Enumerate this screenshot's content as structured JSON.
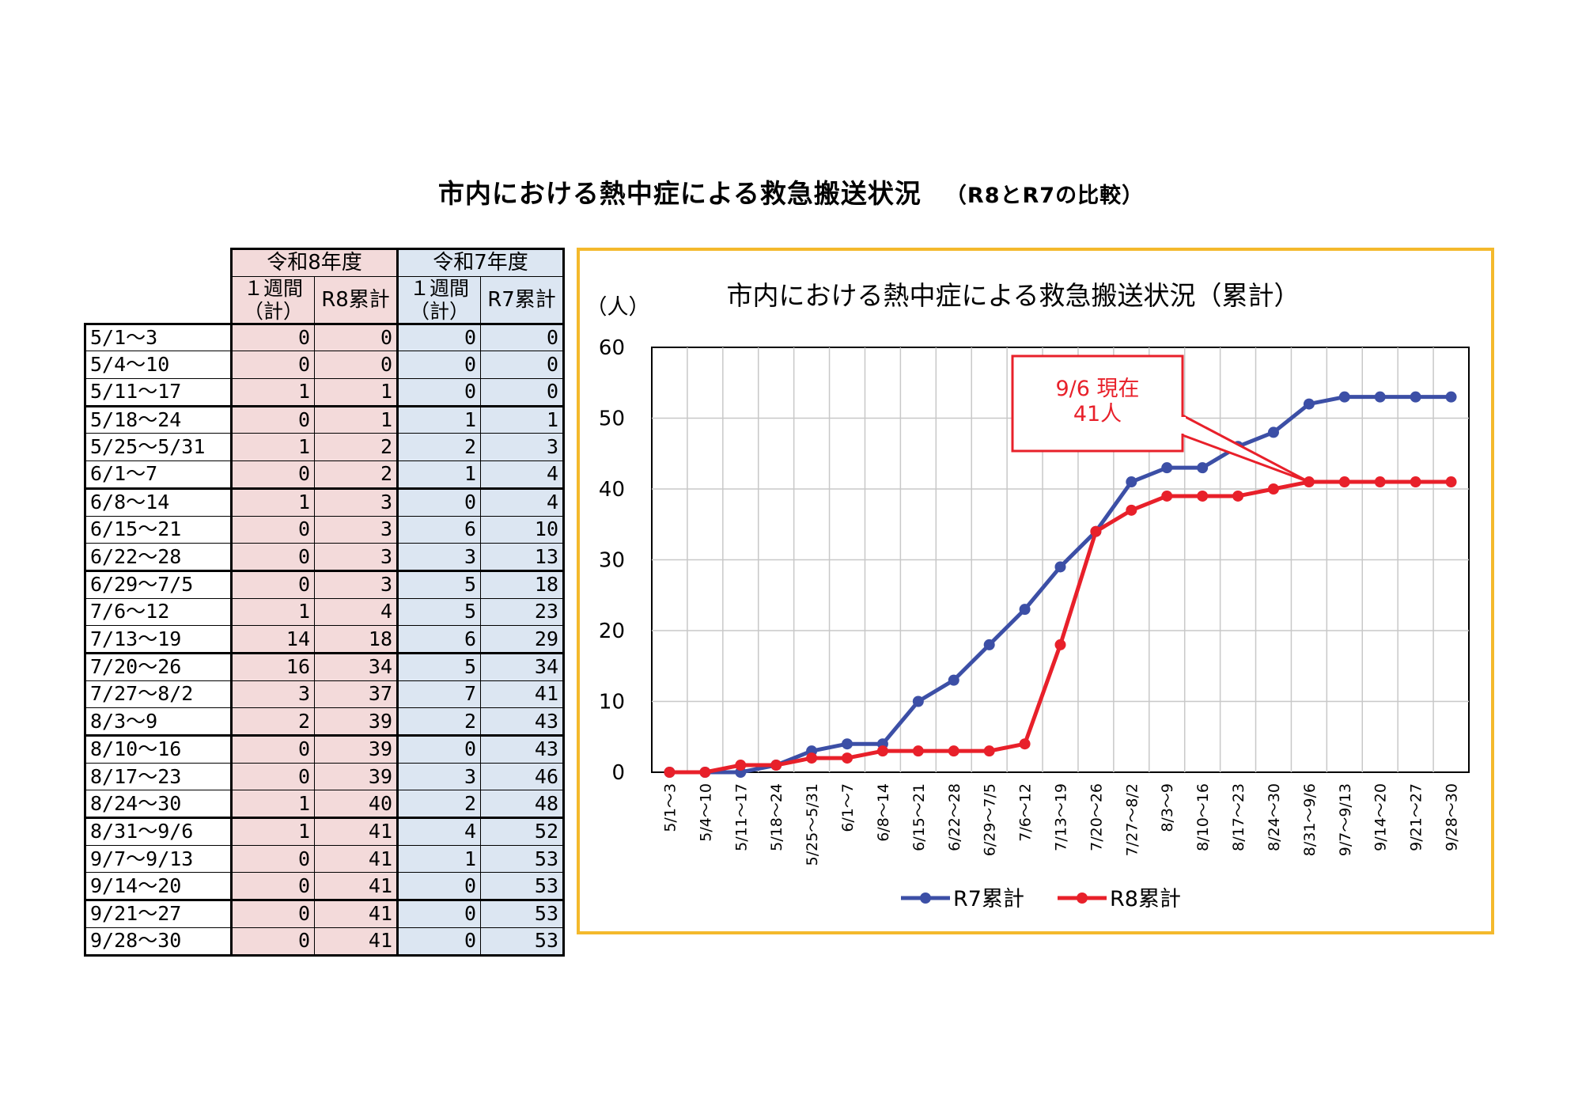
{
  "page": {
    "title": "市内における熱中症による救急搬送状況",
    "subtitle": "（R8とR7の比較）"
  },
  "table": {
    "group_headers": [
      "令和8年度",
      "令和7年度"
    ],
    "col_headers": {
      "weekly": "１週間（計）",
      "r8_cum": "R8累計",
      "r7_cum": "R7累計"
    },
    "rows": [
      {
        "label": "5/1～3",
        "r8_week": "0",
        "r8_cum": "0",
        "r7_week": "0",
        "r7_cum": "0"
      },
      {
        "label": "5/4～10",
        "r8_week": "0",
        "r8_cum": "0",
        "r7_week": "0",
        "r7_cum": "0"
      },
      {
        "label": "5/11～17",
        "r8_week": "1",
        "r8_cum": "1",
        "r7_week": "0",
        "r7_cum": "0"
      },
      {
        "label": "5/18～24",
        "r8_week": "0",
        "r8_cum": "1",
        "r7_week": "1",
        "r7_cum": "1"
      },
      {
        "label": "5/25～5/31",
        "r8_week": "1",
        "r8_cum": "2",
        "r7_week": "2",
        "r7_cum": "3"
      },
      {
        "label": "6/1～7",
        "r8_week": "0",
        "r8_cum": "2",
        "r7_week": "1",
        "r7_cum": "4"
      },
      {
        "label": "6/8～14",
        "r8_week": "1",
        "r8_cum": "3",
        "r7_week": "0",
        "r7_cum": "4"
      },
      {
        "label": "6/15～21",
        "r8_week": "0",
        "r8_cum": "3",
        "r7_week": "6",
        "r7_cum": "10"
      },
      {
        "label": "6/22～28",
        "r8_week": "0",
        "r8_cum": "3",
        "r7_week": "3",
        "r7_cum": "13"
      },
      {
        "label": "6/29～7/5",
        "r8_week": "0",
        "r8_cum": "3",
        "r7_week": "5",
        "r7_cum": "18"
      },
      {
        "label": "7/6～12",
        "r8_week": "1",
        "r8_cum": "4",
        "r7_week": "5",
        "r7_cum": "23"
      },
      {
        "label": "7/13～19",
        "r8_week": "14",
        "r8_cum": "18",
        "r7_week": "6",
        "r7_cum": "29"
      },
      {
        "label": "7/20～26",
        "r8_week": "16",
        "r8_cum": "34",
        "r7_week": "5",
        "r7_cum": "34"
      },
      {
        "label": "7/27～8/2",
        "r8_week": "3",
        "r8_cum": "37",
        "r7_week": "7",
        "r7_cum": "41"
      },
      {
        "label": "8/3～9",
        "r8_week": "2",
        "r8_cum": "39",
        "r7_week": "2",
        "r7_cum": "43"
      },
      {
        "label": "8/10～16",
        "r8_week": "0",
        "r8_cum": "39",
        "r7_week": "0",
        "r7_cum": "43"
      },
      {
        "label": "8/17～23",
        "r8_week": "0",
        "r8_cum": "39",
        "r7_week": "3",
        "r7_cum": "46"
      },
      {
        "label": "8/24～30",
        "r8_week": "1",
        "r8_cum": "40",
        "r7_week": "2",
        "r7_cum": "48"
      },
      {
        "label": "8/31～9/6",
        "r8_week": "1",
        "r8_cum": "41",
        "r7_week": "4",
        "r7_cum": "52"
      },
      {
        "label": "9/7～9/13",
        "r8_week": "0",
        "r8_cum": "41",
        "r7_week": "1",
        "r7_cum": "53"
      },
      {
        "label": "9/14～20",
        "r8_week": "0",
        "r8_cum": "41",
        "r7_week": "0",
        "r7_cum": "53"
      },
      {
        "label": "9/21～27",
        "r8_week": "0",
        "r8_cum": "41",
        "r7_week": "0",
        "r7_cum": "53"
      },
      {
        "label": "9/28～30",
        "r8_week": "0",
        "r8_cum": "41",
        "r7_week": "0",
        "r7_cum": "53"
      }
    ]
  },
  "chart_data": {
    "type": "line",
    "title": "市内における熱中症による救急搬送状況（累計）",
    "ylabel": "（人）",
    "xlabel": "",
    "ylim": [
      0,
      60
    ],
    "yticks": [
      0,
      10,
      20,
      30,
      40,
      50,
      60
    ],
    "grid": true,
    "legend_position": "bottom",
    "categories": [
      "5/1～3",
      "5/4～10",
      "5/11～17",
      "5/18～24",
      "5/25～5/31",
      "6/1～7",
      "6/8～14",
      "6/15～21",
      "6/22～28",
      "6/29～7/5",
      "7/6～12",
      "7/13～19",
      "7/20～26",
      "7/27～8/2",
      "8/3～9",
      "8/10～16",
      "8/17～23",
      "8/24～30",
      "8/31～9/6",
      "9/7～9/13",
      "9/14～20",
      "9/21～27",
      "9/28～30"
    ],
    "series": [
      {
        "name": "R7累計",
        "color": "#3c4fa6",
        "values": [
          0,
          0,
          0,
          1,
          3,
          4,
          4,
          10,
          13,
          18,
          23,
          29,
          34,
          41,
          43,
          43,
          46,
          48,
          52,
          53,
          53,
          53,
          53
        ]
      },
      {
        "name": "R8累計",
        "color": "#e8202a",
        "values": [
          0,
          0,
          1,
          1,
          2,
          2,
          3,
          3,
          3,
          3,
          4,
          18,
          34,
          37,
          39,
          39,
          39,
          40,
          41,
          41,
          41,
          41,
          41
        ]
      }
    ],
    "annotation": {
      "lines": [
        "9/6 現在",
        "41人"
      ],
      "color": "#e8202a",
      "target_category_index": 18,
      "target_value": 41
    }
  }
}
